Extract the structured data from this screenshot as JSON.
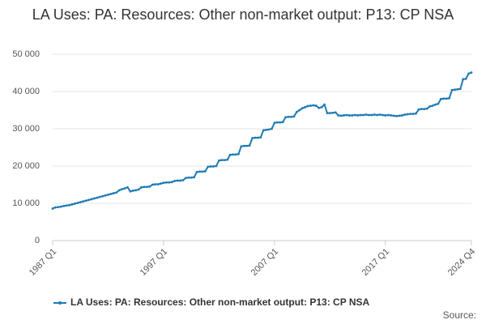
{
  "chart_data": {
    "type": "line",
    "title": "LA Uses: PA: Resources: Other non-market output: P13: CP NSA",
    "source": "Source:",
    "categories": [
      "1987 Q1",
      null,
      null,
      null,
      null,
      null,
      null,
      null,
      null,
      null,
      null,
      null,
      null,
      null,
      null,
      null,
      null,
      null,
      null,
      null,
      null,
      null,
      null,
      null,
      null,
      null,
      null,
      null,
      null,
      null,
      null,
      null,
      null,
      null,
      null,
      null,
      null,
      null,
      null,
      null,
      "1997 Q1",
      null,
      null,
      null,
      null,
      null,
      null,
      null,
      null,
      null,
      null,
      null,
      null,
      null,
      null,
      null,
      null,
      null,
      null,
      null,
      null,
      null,
      null,
      null,
      null,
      null,
      null,
      null,
      null,
      null,
      null,
      null,
      null,
      null,
      null,
      null,
      null,
      null,
      null,
      null,
      "2007 Q1",
      null,
      null,
      null,
      null,
      null,
      null,
      null,
      null,
      null,
      null,
      null,
      null,
      null,
      null,
      null,
      null,
      null,
      null,
      null,
      null,
      null,
      null,
      null,
      null,
      null,
      null,
      null,
      null,
      null,
      null,
      null,
      null,
      null,
      null,
      null,
      null,
      null,
      null,
      null,
      "2017 Q1",
      null,
      null,
      null,
      null,
      null,
      null,
      null,
      null,
      null,
      null,
      null,
      null,
      null,
      null,
      null,
      null,
      null,
      null,
      null,
      null,
      null,
      null,
      null,
      null,
      null,
      null,
      null,
      null,
      null,
      null,
      "2024 Q4"
    ],
    "series": [
      {
        "name": "LA Uses: PA: Resources: Other non-market output: P13: CP NSA",
        "color": "#1f7bb6",
        "values": [
          8600,
          8900,
          9000,
          9100,
          9300,
          9400,
          9500,
          9700,
          9900,
          10100,
          10300,
          10500,
          10700,
          10900,
          11100,
          11300,
          11500,
          11700,
          11900,
          12100,
          12300,
          12500,
          12700,
          12900,
          13500,
          13800,
          14000,
          14300,
          13200,
          13400,
          13500,
          13700,
          14300,
          14400,
          14400,
          14500,
          15000,
          15100,
          15100,
          15300,
          15500,
          15600,
          15600,
          15700,
          16000,
          16100,
          16100,
          16200,
          16800,
          16900,
          16900,
          17000,
          18400,
          18500,
          18500,
          18600,
          19800,
          19900,
          19900,
          20000,
          21500,
          21600,
          21600,
          21700,
          23000,
          23100,
          23100,
          23200,
          25300,
          25400,
          25400,
          25500,
          27500,
          27600,
          27600,
          27700,
          29600,
          29700,
          29800,
          30000,
          31600,
          31700,
          31700,
          31800,
          33100,
          33200,
          33200,
          33300,
          34500,
          35000,
          35500,
          35800,
          36100,
          36200,
          36300,
          36200,
          35600,
          35800,
          36500,
          34200,
          34200,
          34300,
          34400,
          33600,
          33500,
          33600,
          33700,
          33600,
          33600,
          33700,
          33600,
          33700,
          33700,
          33800,
          33700,
          33700,
          33800,
          33700,
          33800,
          33700,
          33600,
          33700,
          33600,
          33500,
          33400,
          33500,
          33600,
          33800,
          33900,
          34000,
          34000,
          34100,
          35200,
          35300,
          35300,
          35400,
          36000,
          36200,
          36500,
          36700,
          38000,
          38100,
          38100,
          38200,
          40400,
          40500,
          40600,
          40700,
          43300,
          43400,
          44800,
          45100
        ]
      }
    ],
    "ylim": [
      0,
      50000
    ],
    "yticks": [
      0,
      {
        "value": 10000,
        "label": "10 000"
      },
      {
        "value": 20000,
        "label": "20 000"
      },
      {
        "value": 30000,
        "label": "30 000"
      },
      {
        "value": 40000,
        "label": "40 000"
      },
      {
        "value": 50000,
        "label": "50 000"
      }
    ],
    "grid": true
  }
}
